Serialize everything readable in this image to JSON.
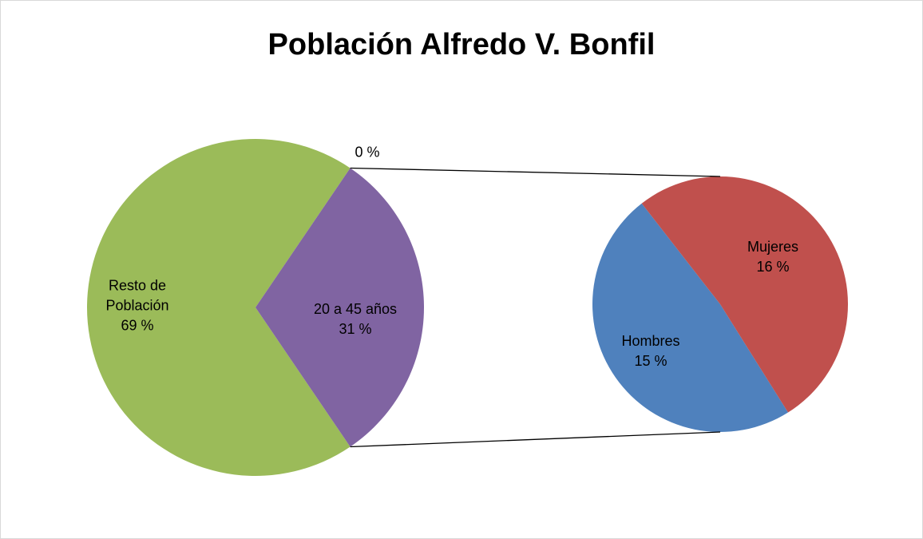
{
  "chart_data": {
    "type": "pie-of-pie",
    "title": "Población Alfredo V. Bonfil",
    "main": {
      "categories": [
        "Resto de Población",
        null,
        "20 a 45 años"
      ],
      "values": [
        69,
        0,
        31
      ],
      "value_labels": [
        "69 %",
        "0 %",
        "31 %"
      ],
      "colors": [
        "#9bbb59",
        "#4bacc6",
        "#8064a2"
      ]
    },
    "secondary": {
      "categories": [
        "Hombres",
        "Mujeres"
      ],
      "values": [
        15,
        16
      ],
      "value_labels": [
        "15 %",
        "16 %"
      ],
      "colors": [
        "#4f81bd",
        "#c0504d"
      ]
    }
  }
}
